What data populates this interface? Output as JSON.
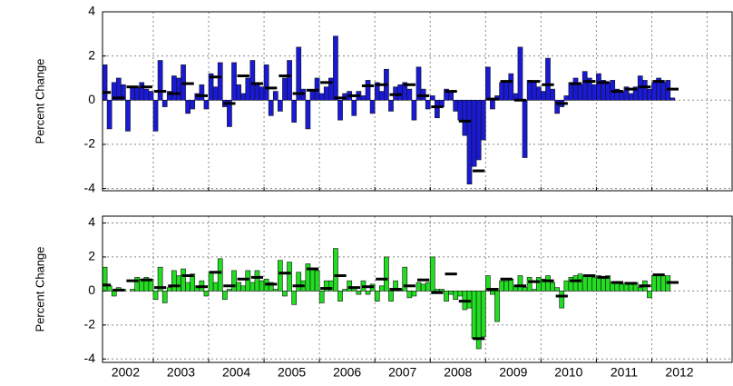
{
  "chart_data": [
    {
      "type": "bar",
      "ylabel": "Percent Change",
      "xlim": [
        2002.0833,
        2013.45
      ],
      "ylim": [
        -4.1,
        4
      ],
      "yticks": [
        -4,
        -2,
        0,
        2,
        4
      ],
      "grid": true,
      "series": [
        {
          "type": "bar",
          "color": "#1a1ad6",
          "values": [
            1.6,
            -1.3,
            0.8,
            1.0,
            0.7,
            -1.4,
            0.6,
            0.6,
            0.8,
            0.5,
            0.4,
            -1.4,
            1.8,
            -0.3,
            0.4,
            1.1,
            1.0,
            1.6,
            -0.6,
            -0.4,
            0.3,
            0.7,
            -0.4,
            1.2,
            0.6,
            1.7,
            -0.3,
            -1.2,
            1.7,
            0.7,
            0.3,
            1.0,
            1.8,
            0.8,
            0.6,
            1.6,
            -0.7,
            0.4,
            -0.5,
            1.0,
            1.8,
            -1.0,
            2.4,
            0.5,
            -1.3,
            0.4,
            1.0,
            0.3,
            0.6,
            1.0,
            2.9,
            -0.9,
            0.3,
            0.4,
            -0.7,
            0.4,
            0.2,
            0.9,
            -0.6,
            0.8,
            0.4,
            1.4,
            -0.5,
            0.6,
            0.7,
            0.8,
            0.5,
            -0.9,
            1.5,
            0.5,
            -0.4,
            0.2,
            -0.8,
            -0.3,
            0.5,
            0.4,
            -0.5,
            -0.9,
            -1.6,
            -3.8,
            -3.0,
            -2.7,
            -1.8,
            1.5,
            -0.4,
            0.2,
            0.8,
            0.8,
            1.2,
            0.3,
            2.4,
            -2.6,
            0.9,
            0.8,
            0.6,
            0.4,
            1.9,
            0.5,
            -0.6,
            -0.3,
            0.2,
            0.8,
            1.0,
            0.7,
            1.3,
            1.0,
            0.7,
            1.2,
            0.9,
            0.8,
            0.9,
            0.5,
            0.4,
            0.6,
            0.3,
            0.6,
            1.1,
            0.9,
            0.5,
            0.8,
            1.0,
            0.8,
            0.9,
            0.1
          ]
        },
        {
          "type": "dash",
          "color": "#000000",
          "values": [
            0.35,
            0.1,
            0.6,
            0.6,
            0.4,
            0.3,
            0.75,
            0.2,
            1.05,
            -0.15,
            1.1,
            0.75,
            0.55,
            1.1,
            0.3,
            0.45,
            0.8,
            0.1,
            0.2,
            0.65,
            0.7,
            0.25,
            0.7,
            0.2,
            -0.3,
            0.4,
            -0.95,
            -3.2,
            0.05,
            0.85,
            0.0,
            0.85,
            0.7,
            -0.15,
            0.75,
            0.85,
            0.8,
            0.4,
            0.5,
            0.6,
            0.85,
            0.5
          ]
        }
      ]
    },
    {
      "type": "bar",
      "ylabel": "Percent Change",
      "xlim": [
        2002.0833,
        2013.45
      ],
      "ylim": [
        -4.2,
        4.4
      ],
      "yticks": [
        -4,
        -2,
        0,
        2,
        4
      ],
      "grid": true,
      "xticks": [
        {
          "value": 2002.5,
          "label": "2002"
        },
        {
          "value": 2003.5,
          "label": "2003"
        },
        {
          "value": 2004.5,
          "label": "2004"
        },
        {
          "value": 2005.5,
          "label": "2005"
        },
        {
          "value": 2006.5,
          "label": "2006"
        },
        {
          "value": 2007.5,
          "label": "2007"
        },
        {
          "value": 2008.5,
          "label": "2008"
        },
        {
          "value": 2009.5,
          "label": "2009"
        },
        {
          "value": 2010.5,
          "label": "2010"
        },
        {
          "value": 2011.5,
          "label": "2011"
        },
        {
          "value": 2012.5,
          "label": "2012"
        }
      ],
      "series": [
        {
          "type": "bar",
          "color": "#22dd22",
          "values": [
            1.4,
            0.3,
            -0.3,
            0.2,
            0.1,
            0.0,
            0.1,
            0.8,
            0.7,
            0.8,
            0.7,
            -0.5,
            1.4,
            -0.7,
            0.2,
            1.2,
            0.9,
            1.3,
            0.5,
            1.0,
            0.3,
            0.6,
            -0.3,
            1.1,
            0.5,
            1.9,
            -0.5,
            0.1,
            1.2,
            0.5,
            0.3,
            1.2,
            0.5,
            1.2,
            0.6,
            0.7,
            0.5,
            0.1,
            1.8,
            -0.3,
            1.7,
            -0.8,
            1.1,
            0.6,
            1.6,
            1.3,
            1.2,
            -0.7,
            0.6,
            0.6,
            2.5,
            -0.6,
            0.1,
            0.6,
            0.2,
            -0.2,
            0.6,
            -0.2,
            0.4,
            -0.6,
            0.3,
            2.0,
            -0.6,
            0.6,
            0.1,
            1.4,
            -0.4,
            -0.3,
            0.5,
            0.4,
            0.5,
            2.0,
            0.1,
            0.1,
            -0.6,
            -0.2,
            -0.5,
            -0.3,
            -1.1,
            -1.0,
            -2.8,
            -3.4,
            -2.7,
            0.9,
            -0.2,
            -1.8,
            0.6,
            0.6,
            0.7,
            0.3,
            0.9,
            0.2,
            0.8,
            0.1,
            0.8,
            0.7,
            0.9,
            0.5,
            0.2,
            -1.0,
            0.6,
            0.8,
            0.9,
            1.0,
            0.9,
            0.9,
            0.8,
            0.9,
            0.8,
            0.9,
            0.5,
            0.5,
            0.4,
            0.5,
            0.5,
            0.5,
            0.2,
            0.6,
            -0.4,
            0.9,
            1.0,
            0.9,
            0.9,
            0.0
          ]
        },
        {
          "type": "dash",
          "color": "#000000",
          "values": [
            0.35,
            0.05,
            0.6,
            0.65,
            0.2,
            0.3,
            0.9,
            0.25,
            1.1,
            0.3,
            0.7,
            0.8,
            0.4,
            1.05,
            0.3,
            1.3,
            0.15,
            0.9,
            0.2,
            0.25,
            0.7,
            0.1,
            0.3,
            0.65,
            -0.1,
            1.0,
            -0.6,
            -2.8,
            0.1,
            0.7,
            0.3,
            0.55,
            0.6,
            -0.3,
            0.6,
            0.9,
            0.8,
            0.5,
            0.45,
            0.3,
            0.95,
            0.5
          ]
        }
      ]
    }
  ]
}
